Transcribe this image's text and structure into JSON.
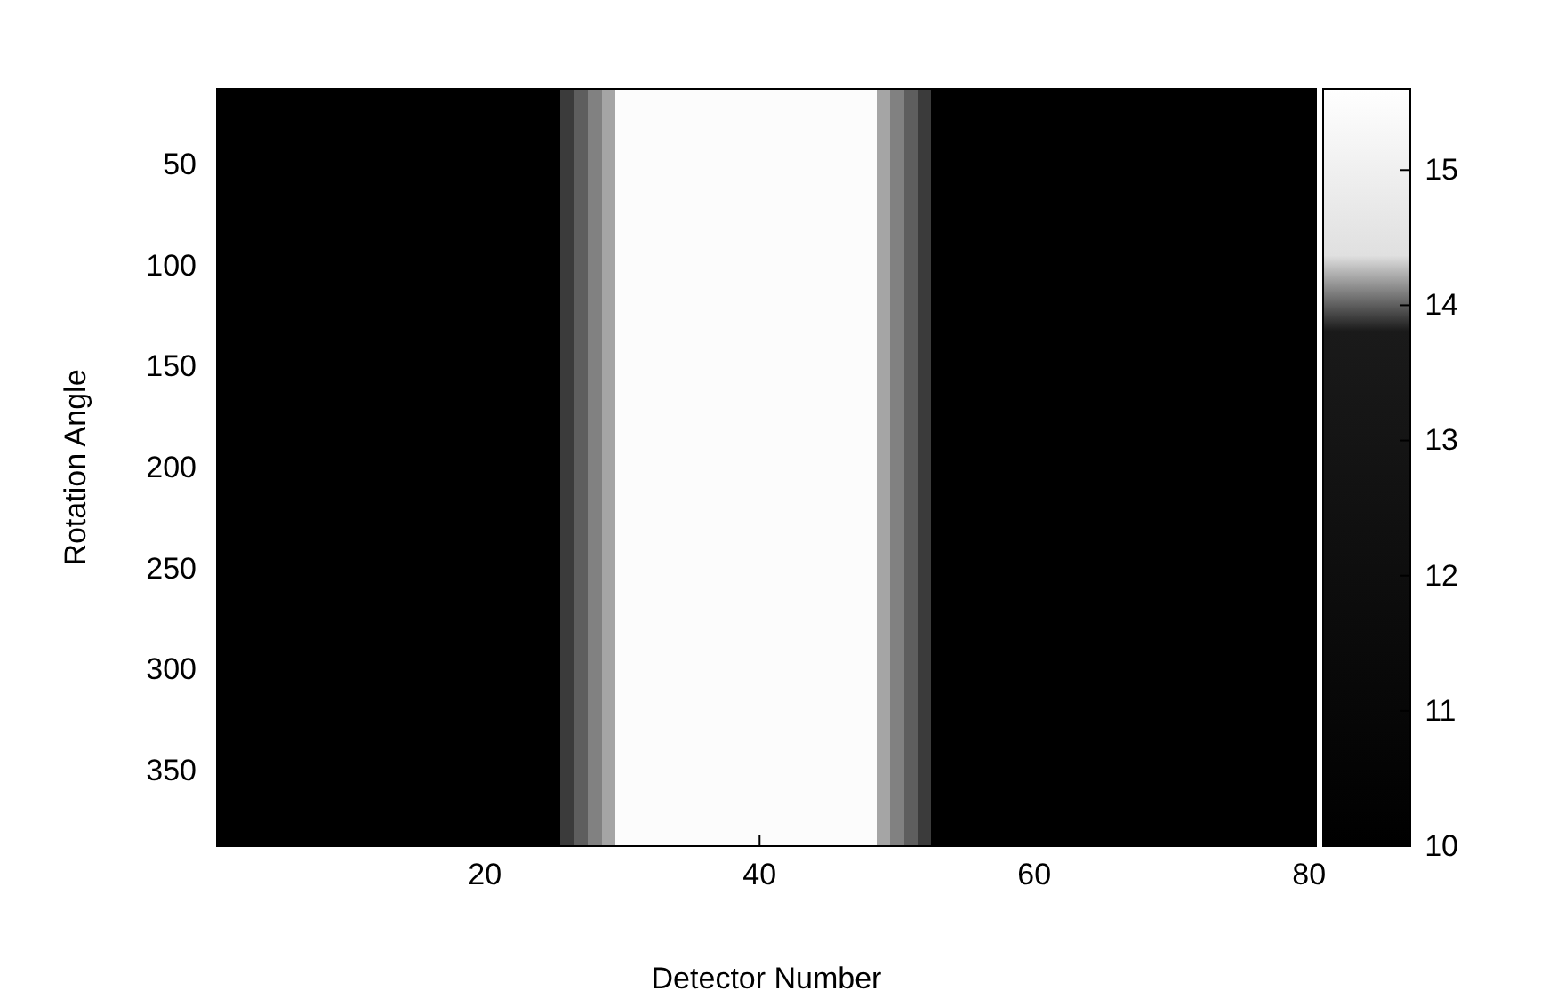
{
  "chart_data": {
    "type": "heatmap",
    "xlabel": "Detector Number",
    "ylabel": "Rotation Angle",
    "categories": [
      null,
      null,
      null,
      null,
      null,
      null,
      null,
      null,
      null,
      null,
      null,
      null,
      null,
      null,
      null,
      null,
      null,
      null,
      null,
      "20",
      null,
      null,
      null,
      null,
      null,
      null,
      null,
      null,
      null,
      null,
      null,
      null,
      null,
      null,
      null,
      null,
      null,
      null,
      null,
      "40",
      null,
      null,
      null,
      null,
      null,
      null,
      null,
      null,
      null,
      null,
      null,
      null,
      null,
      null,
      null,
      null,
      null,
      null,
      null,
      "60",
      null,
      null,
      null,
      null,
      null,
      null,
      null,
      null,
      null,
      null,
      null,
      null,
      null,
      null,
      null,
      null,
      null,
      null,
      null,
      "80"
    ],
    "y_categories": [
      null,
      "50",
      null,
      "100",
      null,
      "150",
      null,
      "200",
      null,
      "250",
      null,
      "300",
      null,
      "350",
      null
    ],
    "clim": [
      10,
      15.6
    ],
    "cticks": [
      10,
      11,
      12,
      13,
      14,
      15
    ],
    "cells": [
      [
        10,
        10,
        10,
        10,
        10,
        10,
        10,
        10,
        10,
        10,
        10,
        10,
        10,
        10,
        10,
        10,
        10,
        10,
        10,
        10,
        10,
        10,
        10,
        10,
        10,
        13.9,
        14,
        14.1,
        14.2,
        15.5,
        15.5,
        15.5,
        15.5,
        15.5,
        15.5,
        15.5,
        15.5,
        15.5,
        15.5,
        15.5,
        15.5,
        15.5,
        15.5,
        15.5,
        15.5,
        15.5,
        15.5,
        15.5,
        14.2,
        14.1,
        14,
        13.9,
        10,
        10,
        10,
        10,
        10,
        10,
        10,
        10,
        10,
        10,
        10,
        10,
        10,
        10,
        10,
        10,
        10,
        10,
        10,
        10,
        10,
        10,
        10,
        10,
        10,
        10,
        10,
        10
      ],
      [
        10,
        10,
        10,
        10,
        10,
        10,
        10,
        10,
        10,
        10,
        10,
        10,
        10,
        10,
        10,
        10,
        10,
        10,
        10,
        10,
        10,
        10,
        10,
        10,
        10,
        13.9,
        14,
        14.1,
        14.2,
        15.5,
        15.5,
        15.5,
        15.5,
        15.5,
        15.5,
        15.5,
        15.5,
        15.5,
        15.5,
        15.5,
        15.5,
        15.5,
        15.5,
        15.5,
        15.5,
        15.5,
        15.5,
        15.5,
        14.2,
        14.1,
        14,
        13.9,
        10,
        10,
        10,
        10,
        10,
        10,
        10,
        10,
        10,
        10,
        10,
        10,
        10,
        10,
        10,
        10,
        10,
        10,
        10,
        10,
        10,
        10,
        10,
        10,
        10,
        10,
        10,
        10
      ],
      [
        10,
        10,
        10,
        10,
        10,
        10,
        10,
        10,
        10,
        10,
        10,
        10,
        10,
        10,
        10,
        10,
        10,
        10,
        10,
        10,
        10,
        10,
        10,
        10,
        10,
        13.9,
        14,
        14.1,
        14.2,
        15.5,
        15.5,
        15.5,
        15.5,
        15.5,
        15.5,
        15.5,
        15.5,
        15.5,
        15.5,
        15.5,
        15.5,
        15.5,
        15.5,
        15.5,
        15.5,
        15.5,
        15.5,
        15.5,
        14.2,
        14.1,
        14,
        13.9,
        10,
        10,
        10,
        10,
        10,
        10,
        10,
        10,
        10,
        10,
        10,
        10,
        10,
        10,
        10,
        10,
        10,
        10,
        10,
        10,
        10,
        10,
        10,
        10,
        10,
        10,
        10,
        10
      ],
      [
        10,
        10,
        10,
        10,
        10,
        10,
        10,
        10,
        10,
        10,
        10,
        10,
        10,
        10,
        10,
        10,
        10,
        10,
        10,
        10,
        10,
        10,
        10,
        10,
        10,
        13.9,
        14,
        14.1,
        14.2,
        15.5,
        15.5,
        15.5,
        15.5,
        15.5,
        15.5,
        15.5,
        15.5,
        15.5,
        15.5,
        15.5,
        15.5,
        15.5,
        15.5,
        15.5,
        15.5,
        15.5,
        15.5,
        15.5,
        14.2,
        14.1,
        14,
        13.9,
        10,
        10,
        10,
        10,
        10,
        10,
        10,
        10,
        10,
        10,
        10,
        10,
        10,
        10,
        10,
        10,
        10,
        10,
        10,
        10,
        10,
        10,
        10,
        10,
        10,
        10,
        10,
        10
      ],
      [
        10,
        10,
        10,
        10,
        10,
        10,
        10,
        10,
        10,
        10,
        10,
        10,
        10,
        10,
        10,
        10,
        10,
        10,
        10,
        10,
        10,
        10,
        10,
        10,
        10,
        13.9,
        14,
        14.1,
        14.2,
        15.5,
        15.5,
        15.5,
        15.5,
        15.5,
        15.5,
        15.5,
        15.5,
        15.5,
        15.5,
        15.5,
        15.5,
        15.5,
        15.5,
        15.5,
        15.5,
        15.5,
        15.5,
        15.5,
        14.2,
        14.1,
        14,
        13.9,
        10,
        10,
        10,
        10,
        10,
        10,
        10,
        10,
        10,
        10,
        10,
        10,
        10,
        10,
        10,
        10,
        10,
        10,
        10,
        10,
        10,
        10,
        10,
        10,
        10,
        10,
        10,
        10
      ],
      [
        10,
        10,
        10,
        10,
        10,
        10,
        10,
        10,
        10,
        10,
        10,
        10,
        10,
        10,
        10,
        10,
        10,
        10,
        10,
        10,
        10,
        10,
        10,
        10,
        10,
        13.9,
        14,
        14.1,
        14.2,
        15.5,
        15.5,
        15.5,
        15.5,
        15.5,
        15.5,
        15.5,
        15.5,
        15.5,
        15.5,
        15.5,
        15.5,
        15.5,
        15.5,
        15.5,
        15.5,
        15.5,
        15.5,
        15.5,
        14.2,
        14.1,
        14,
        13.9,
        10,
        10,
        10,
        10,
        10,
        10,
        10,
        10,
        10,
        10,
        10,
        10,
        10,
        10,
        10,
        10,
        10,
        10,
        10,
        10,
        10,
        10,
        10,
        10,
        10,
        10,
        10,
        10
      ],
      [
        10,
        10,
        10,
        10,
        10,
        10,
        10,
        10,
        10,
        10,
        10,
        10,
        10,
        10,
        10,
        10,
        10,
        10,
        10,
        10,
        10,
        10,
        10,
        10,
        10,
        13.9,
        14,
        14.1,
        14.2,
        15.5,
        15.5,
        15.5,
        15.5,
        15.5,
        15.5,
        15.5,
        15.5,
        15.5,
        15.5,
        15.5,
        15.5,
        15.5,
        15.5,
        15.5,
        15.5,
        15.5,
        15.5,
        15.5,
        14.2,
        14.1,
        14,
        13.9,
        10,
        10,
        10,
        10,
        10,
        10,
        10,
        10,
        10,
        10,
        10,
        10,
        10,
        10,
        10,
        10,
        10,
        10,
        10,
        10,
        10,
        10,
        10,
        10,
        10,
        10,
        10,
        10
      ],
      [
        10,
        10,
        10,
        10,
        10,
        10,
        10,
        10,
        10,
        10,
        10,
        10,
        10,
        10,
        10,
        10,
        10,
        10,
        10,
        10,
        10,
        10,
        10,
        10,
        10,
        13.9,
        14,
        14.1,
        14.2,
        15.5,
        15.5,
        15.5,
        15.5,
        15.5,
        15.5,
        15.5,
        15.5,
        15.5,
        15.5,
        15.5,
        15.5,
        15.5,
        15.5,
        15.5,
        15.5,
        15.5,
        15.5,
        15.5,
        14.2,
        14.1,
        14,
        13.9,
        10,
        10,
        10,
        10,
        10,
        10,
        10,
        10,
        10,
        10,
        10,
        10,
        10,
        10,
        10,
        10,
        10,
        10,
        10,
        10,
        10,
        10,
        10,
        10,
        10,
        10,
        10,
        10
      ],
      [
        10,
        10,
        10,
        10,
        10,
        10,
        10,
        10,
        10,
        10,
        10,
        10,
        10,
        10,
        10,
        10,
        10,
        10,
        10,
        10,
        10,
        10,
        10,
        10,
        10,
        13.9,
        14,
        14.1,
        14.2,
        15.5,
        15.5,
        15.5,
        15.5,
        15.5,
        15.5,
        15.5,
        15.5,
        15.5,
        15.5,
        15.5,
        15.5,
        15.5,
        15.5,
        15.5,
        15.5,
        15.5,
        15.5,
        15.5,
        14.2,
        14.1,
        14,
        13.9,
        10,
        10,
        10,
        10,
        10,
        10,
        10,
        10,
        10,
        10,
        10,
        10,
        10,
        10,
        10,
        10,
        10,
        10,
        10,
        10,
        10,
        10,
        10,
        10,
        10,
        10,
        10,
        10
      ],
      [
        10,
        10,
        10,
        10,
        10,
        10,
        10,
        10,
        10,
        10,
        10,
        10,
        10,
        10,
        10,
        10,
        10,
        10,
        10,
        10,
        10,
        10,
        10,
        10,
        10,
        13.9,
        14,
        14.1,
        14.2,
        15.5,
        15.5,
        15.5,
        15.5,
        15.5,
        15.5,
        15.5,
        15.5,
        15.5,
        15.5,
        15.5,
        15.5,
        15.5,
        15.5,
        15.5,
        15.5,
        15.5,
        15.5,
        15.5,
        14.2,
        14.1,
        14,
        13.9,
        10,
        10,
        10,
        10,
        10,
        10,
        10,
        10,
        10,
        10,
        10,
        10,
        10,
        10,
        10,
        10,
        10,
        10,
        10,
        10,
        10,
        10,
        10,
        10,
        10,
        10,
        10,
        10
      ],
      [
        10,
        10,
        10,
        10,
        10,
        10,
        10,
        10,
        10,
        10,
        10,
        10,
        10,
        10,
        10,
        10,
        10,
        10,
        10,
        10,
        10,
        10,
        10,
        10,
        10,
        13.9,
        14,
        14.1,
        14.2,
        15.5,
        15.5,
        15.5,
        15.5,
        15.5,
        15.5,
        15.5,
        15.5,
        15.5,
        15.5,
        15.5,
        15.5,
        15.5,
        15.5,
        15.5,
        15.5,
        15.5,
        15.5,
        15.5,
        14.2,
        14.1,
        14,
        13.9,
        10,
        10,
        10,
        10,
        10,
        10,
        10,
        10,
        10,
        10,
        10,
        10,
        10,
        10,
        10,
        10,
        10,
        10,
        10,
        10,
        10,
        10,
        10,
        10,
        10,
        10,
        10,
        10
      ],
      [
        10,
        10,
        10,
        10,
        10,
        10,
        10,
        10,
        10,
        10,
        10,
        10,
        10,
        10,
        10,
        10,
        10,
        10,
        10,
        10,
        10,
        10,
        10,
        10,
        10,
        13.9,
        14,
        14.1,
        14.2,
        15.5,
        15.5,
        15.5,
        15.5,
        15.5,
        15.5,
        15.5,
        15.5,
        15.5,
        15.5,
        15.5,
        15.5,
        15.5,
        15.5,
        15.5,
        15.5,
        15.5,
        15.5,
        15.5,
        14.2,
        14.1,
        14,
        13.9,
        10,
        10,
        10,
        10,
        10,
        10,
        10,
        10,
        10,
        10,
        10,
        10,
        10,
        10,
        10,
        10,
        10,
        10,
        10,
        10,
        10,
        10,
        10,
        10,
        10,
        10,
        10,
        10
      ],
      [
        10,
        10,
        10,
        10,
        10,
        10,
        10,
        10,
        10,
        10,
        10,
        10,
        10,
        10,
        10,
        10,
        10,
        10,
        10,
        10,
        10,
        10,
        10,
        10,
        10,
        13.9,
        14,
        14.1,
        14.2,
        15.5,
        15.5,
        15.5,
        15.5,
        15.5,
        15.5,
        15.5,
        15.5,
        15.5,
        15.5,
        15.5,
        15.5,
        15.5,
        15.5,
        15.5,
        15.5,
        15.5,
        15.5,
        15.5,
        14.2,
        14.1,
        14,
        13.9,
        10,
        10,
        10,
        10,
        10,
        10,
        10,
        10,
        10,
        10,
        10,
        10,
        10,
        10,
        10,
        10,
        10,
        10,
        10,
        10,
        10,
        10,
        10,
        10,
        10,
        10,
        10,
        10
      ],
      [
        10,
        10,
        10,
        10,
        10,
        10,
        10,
        10,
        10,
        10,
        10,
        10,
        10,
        10,
        10,
        10,
        10,
        10,
        10,
        10,
        10,
        10,
        10,
        10,
        10,
        13.9,
        14,
        14.1,
        14.2,
        15.5,
        15.5,
        15.5,
        15.5,
        15.5,
        15.5,
        15.5,
        15.5,
        15.5,
        15.5,
        15.5,
        15.5,
        15.5,
        15.5,
        15.5,
        15.5,
        15.5,
        15.5,
        15.5,
        14.2,
        14.1,
        14,
        13.9,
        10,
        10,
        10,
        10,
        10,
        10,
        10,
        10,
        10,
        10,
        10,
        10,
        10,
        10,
        10,
        10,
        10,
        10,
        10,
        10,
        10,
        10,
        10,
        10,
        10,
        10,
        10,
        10
      ],
      [
        10,
        10,
        10,
        10,
        10,
        10,
        10,
        10,
        10,
        10,
        10,
        10,
        10,
        10,
        10,
        10,
        10,
        10,
        10,
        10,
        10,
        10,
        10,
        10,
        10,
        13.9,
        14,
        14.1,
        14.2,
        15.5,
        15.5,
        15.5,
        15.5,
        15.5,
        15.5,
        15.5,
        15.5,
        15.5,
        15.5,
        15.5,
        15.5,
        15.5,
        15.5,
        15.5,
        15.5,
        15.5,
        15.5,
        15.5,
        14.2,
        14.1,
        14,
        13.9,
        10,
        10,
        10,
        10,
        10,
        10,
        10,
        10,
        10,
        10,
        10,
        10,
        10,
        10,
        10,
        10,
        10,
        10,
        10,
        10,
        10,
        10,
        10,
        10,
        10,
        10,
        10,
        10
      ]
    ]
  }
}
